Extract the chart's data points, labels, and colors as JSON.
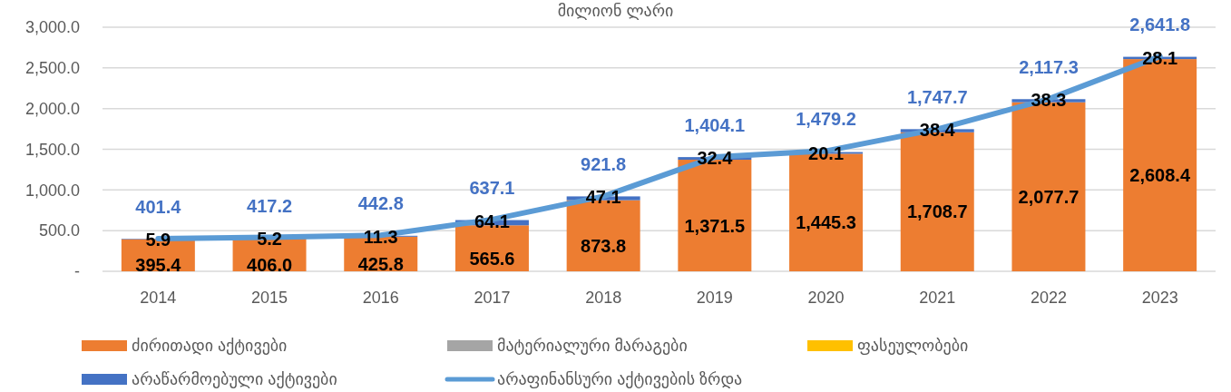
{
  "chart_data": {
    "type": "bar",
    "title": "მილიონ ლარი",
    "stacked": true,
    "categories": [
      "2014",
      "2015",
      "2016",
      "2017",
      "2018",
      "2019",
      "2020",
      "2021",
      "2022",
      "2023"
    ],
    "series": [
      {
        "name": "ძირითადი აქტივები",
        "color": "#ed7d31",
        "values": [
          395.4,
          406.0,
          425.8,
          565.6,
          873.8,
          1371.5,
          1445.3,
          1708.7,
          2077.7,
          2608.4
        ],
        "value_labels": [
          "395.4",
          "406.0",
          "425.8",
          "565.6",
          "873.8",
          "1,371.5",
          "1,445.3",
          "1,708.7",
          "2,077.7",
          "2,608.4"
        ]
      },
      {
        "name": "მატერიალური მარაგები",
        "color": "#a5a5a5",
        "values": [
          null,
          null,
          null,
          null,
          null,
          null,
          null,
          null,
          null,
          null
        ]
      },
      {
        "name": "ფასეულობები",
        "color": "#ffc000",
        "values": [
          null,
          null,
          null,
          null,
          null,
          null,
          null,
          null,
          null,
          null
        ]
      },
      {
        "name": "არაწარმოებული აქტივები",
        "color": "#4472c4",
        "values": [
          5.9,
          5.2,
          11.3,
          64.1,
          47.1,
          32.4,
          20.1,
          38.4,
          38.3,
          28.1
        ],
        "value_labels": [
          "5.9",
          "5.2",
          "11.3",
          "64.1",
          "47.1",
          "32.4",
          "20.1",
          "38.4",
          "38.3",
          "28.1"
        ]
      },
      {
        "name": "არაფინანსური აქტივების ზრდა",
        "type": "line",
        "color": "#5b9bd5",
        "values": [
          401.4,
          417.2,
          442.8,
          637.1,
          921.8,
          1404.1,
          1479.2,
          1747.7,
          2117.3,
          2641.8
        ],
        "value_labels": [
          "401.4",
          "417.2",
          "442.8",
          "637.1",
          "921.8",
          "1,404.1",
          "1,479.2",
          "1,747.7",
          "2,117.3",
          "2,641.8"
        ]
      }
    ],
    "ylim": [
      0,
      3000
    ],
    "yticks": [
      {
        "value": 0,
        "label": "-"
      },
      {
        "value": 500,
        "label": "500.0"
      },
      {
        "value": 1000,
        "label": "1,000.0"
      },
      {
        "value": 1500,
        "label": "1,500.0"
      },
      {
        "value": 2000,
        "label": "2,000.0"
      },
      {
        "value": 2500,
        "label": "2,500.0"
      },
      {
        "value": 3000,
        "label": "3,000.0"
      }
    ],
    "grid": "y",
    "legend": "bottom",
    "data_labels": true
  }
}
